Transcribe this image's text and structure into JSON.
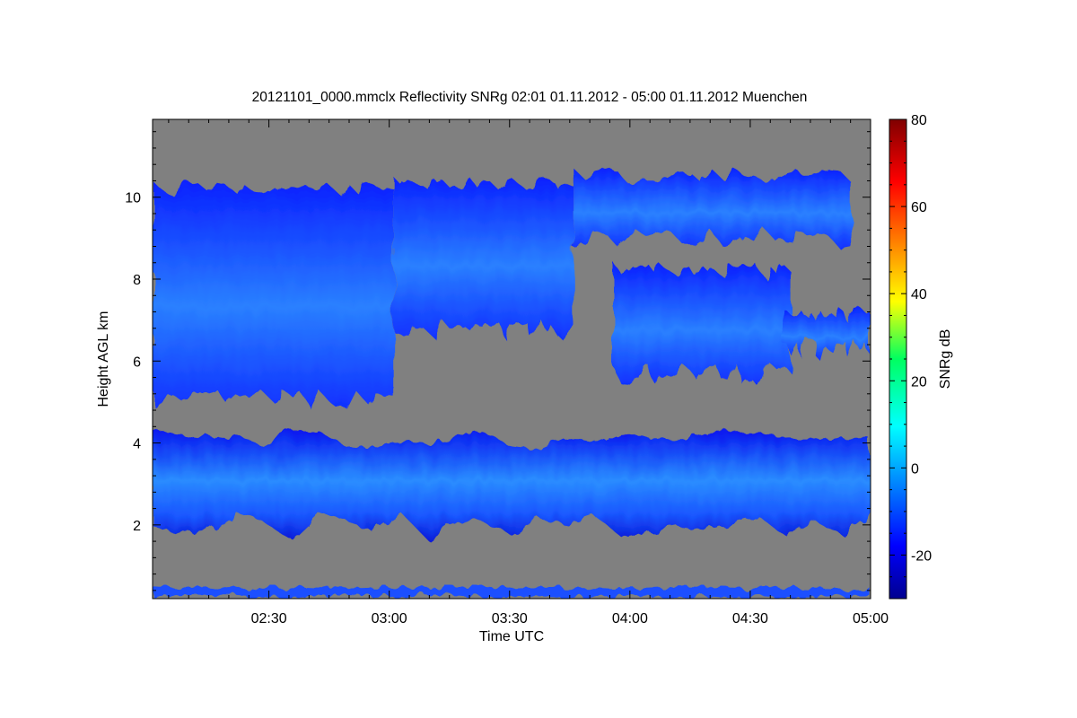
{
  "chart_data": {
    "type": "heatmap",
    "title": "20121101_0000.mmclx Reflectivity SNRg   02:01 01.11.2012 - 05:00 01.11.2012 Muenchen",
    "xlabel": "Time UTC",
    "ylabel": "Height AGL km",
    "x_start": "02:01",
    "x_end": "05:00",
    "xlim": [
      "02:01",
      "05:00"
    ],
    "ylim": [
      0.2,
      11.9
    ],
    "x_ticks": [
      "02:30",
      "03:00",
      "03:30",
      "04:00",
      "04:30",
      "05:00"
    ],
    "y_ticks": [
      2,
      4,
      6,
      8,
      10
    ],
    "colorbar": {
      "label": "SNRg dB",
      "range": [
        -30,
        80
      ],
      "ticks": [
        -20,
        0,
        20,
        40,
        60,
        80
      ],
      "colormap": "jet"
    },
    "background_color": "#808080",
    "cloud_layers": [
      {
        "name": "upper layer",
        "segments": [
          {
            "x_start": "02:01",
            "x_end": "03:01",
            "top_km": 10.4,
            "base_km": 4.8
          },
          {
            "x_start": "03:01",
            "x_end": "03:46",
            "top_km": 10.5,
            "base_km": 6.5
          },
          {
            "x_start": "03:46",
            "x_end": "04:55",
            "top_km": 10.7,
            "base_km": 8.7
          },
          {
            "x_start": "03:56",
            "x_end": "04:40",
            "top_km": 8.4,
            "base_km": 5.4
          },
          {
            "x_start": "04:38",
            "x_end": "05:00",
            "top_km": 7.3,
            "base_km": 6.0
          }
        ]
      },
      {
        "name": "middle layer",
        "x_start": "02:01",
        "x_end": "05:00",
        "top_km": 4.3,
        "base_km": 1.6
      },
      {
        "name": "near-surface clutter",
        "x_start": "02:01",
        "x_end": "05:00",
        "top_km": 0.5,
        "base_km": 0.2
      }
    ]
  }
}
